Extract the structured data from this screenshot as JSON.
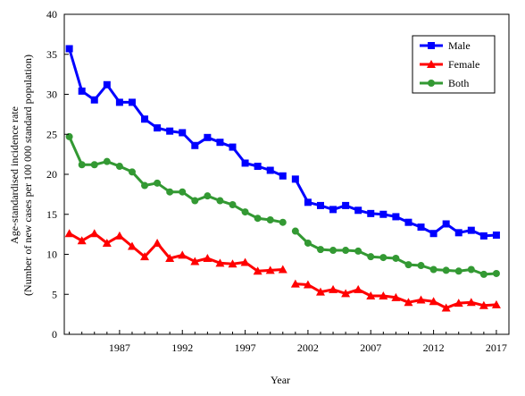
{
  "chart_data": {
    "type": "line",
    "title": "",
    "xlabel": "Year",
    "ylabel_line1": "Age-standardised incidence rate",
    "ylabel_line2": "(Number of new cases per 100 000 standard population)",
    "ylim": [
      0,
      40
    ],
    "yticks": [
      0,
      5,
      10,
      15,
      20,
      25,
      30,
      35,
      40
    ],
    "xlim": [
      1982.6,
      2018
    ],
    "xticks": [
      1987,
      1992,
      1997,
      2002,
      2007,
      2012,
      2017
    ],
    "grid": false,
    "legend_position": "top-right",
    "series": [
      {
        "name": "Male",
        "color": "#0000ff",
        "marker": "square",
        "segments": [
          {
            "x": [
              1983,
              1984,
              1985,
              1986,
              1987,
              1988,
              1989,
              1990,
              1991,
              1992,
              1993,
              1994,
              1995,
              1996,
              1997,
              1998,
              1999,
              2000
            ],
            "y": [
              35.7,
              30.4,
              29.3,
              31.2,
              29.0,
              29.0,
              26.9,
              25.8,
              25.4,
              25.2,
              23.6,
              24.6,
              24.0,
              23.4,
              21.4,
              21.0,
              20.5,
              19.8
            ]
          },
          {
            "x": [
              2001,
              2002,
              2003,
              2004,
              2005,
              2006,
              2007,
              2008,
              2009,
              2010,
              2011,
              2012,
              2013,
              2014,
              2015,
              2016,
              2017
            ],
            "y": [
              19.4,
              16.5,
              16.1,
              15.6,
              16.1,
              15.5,
              15.1,
              15.0,
              14.7,
              14.0,
              13.4,
              12.6,
              13.8,
              12.7,
              13.0,
              12.3,
              12.4
            ]
          }
        ]
      },
      {
        "name": "Female",
        "color": "#ff0000",
        "marker": "triangle",
        "segments": [
          {
            "x": [
              1983,
              1984,
              1985,
              1986,
              1987,
              1988,
              1989,
              1990,
              1991,
              1992,
              1993,
              1994,
              1995,
              1996,
              1997,
              1998,
              1999,
              2000
            ],
            "y": [
              12.6,
              11.7,
              12.6,
              11.4,
              12.3,
              11.0,
              9.7,
              11.4,
              9.5,
              9.9,
              9.1,
              9.5,
              8.9,
              8.8,
              9.0,
              7.9,
              8.0,
              8.1
            ]
          },
          {
            "x": [
              2001,
              2002,
              2003,
              2004,
              2005,
              2006,
              2007,
              2008,
              2009,
              2010,
              2011,
              2012,
              2013,
              2014,
              2015,
              2016,
              2017
            ],
            "y": [
              6.3,
              6.2,
              5.3,
              5.6,
              5.1,
              5.6,
              4.8,
              4.8,
              4.6,
              4.0,
              4.3,
              4.1,
              3.3,
              3.9,
              4.0,
              3.6,
              3.7
            ]
          }
        ]
      },
      {
        "name": "Both",
        "color": "#339933",
        "marker": "circle",
        "segments": [
          {
            "x": [
              1983,
              1984,
              1985,
              1986,
              1987,
              1988,
              1989,
              1990,
              1991,
              1992,
              1993,
              1994,
              1995,
              1996,
              1997,
              1998,
              1999,
              2000
            ],
            "y": [
              24.7,
              21.2,
              21.2,
              21.6,
              21.0,
              20.3,
              18.6,
              18.9,
              17.8,
              17.8,
              16.7,
              17.3,
              16.7,
              16.2,
              15.3,
              14.5,
              14.3,
              14.0
            ]
          },
          {
            "x": [
              2001,
              2002,
              2003,
              2004,
              2005,
              2006,
              2007,
              2008,
              2009,
              2010,
              2011,
              2012,
              2013,
              2014,
              2015,
              2016,
              2017
            ],
            "y": [
              12.9,
              11.4,
              10.6,
              10.5,
              10.5,
              10.4,
              9.7,
              9.6,
              9.5,
              8.7,
              8.6,
              8.1,
              8.0,
              7.9,
              8.1,
              7.5,
              7.6
            ]
          }
        ]
      }
    ]
  }
}
